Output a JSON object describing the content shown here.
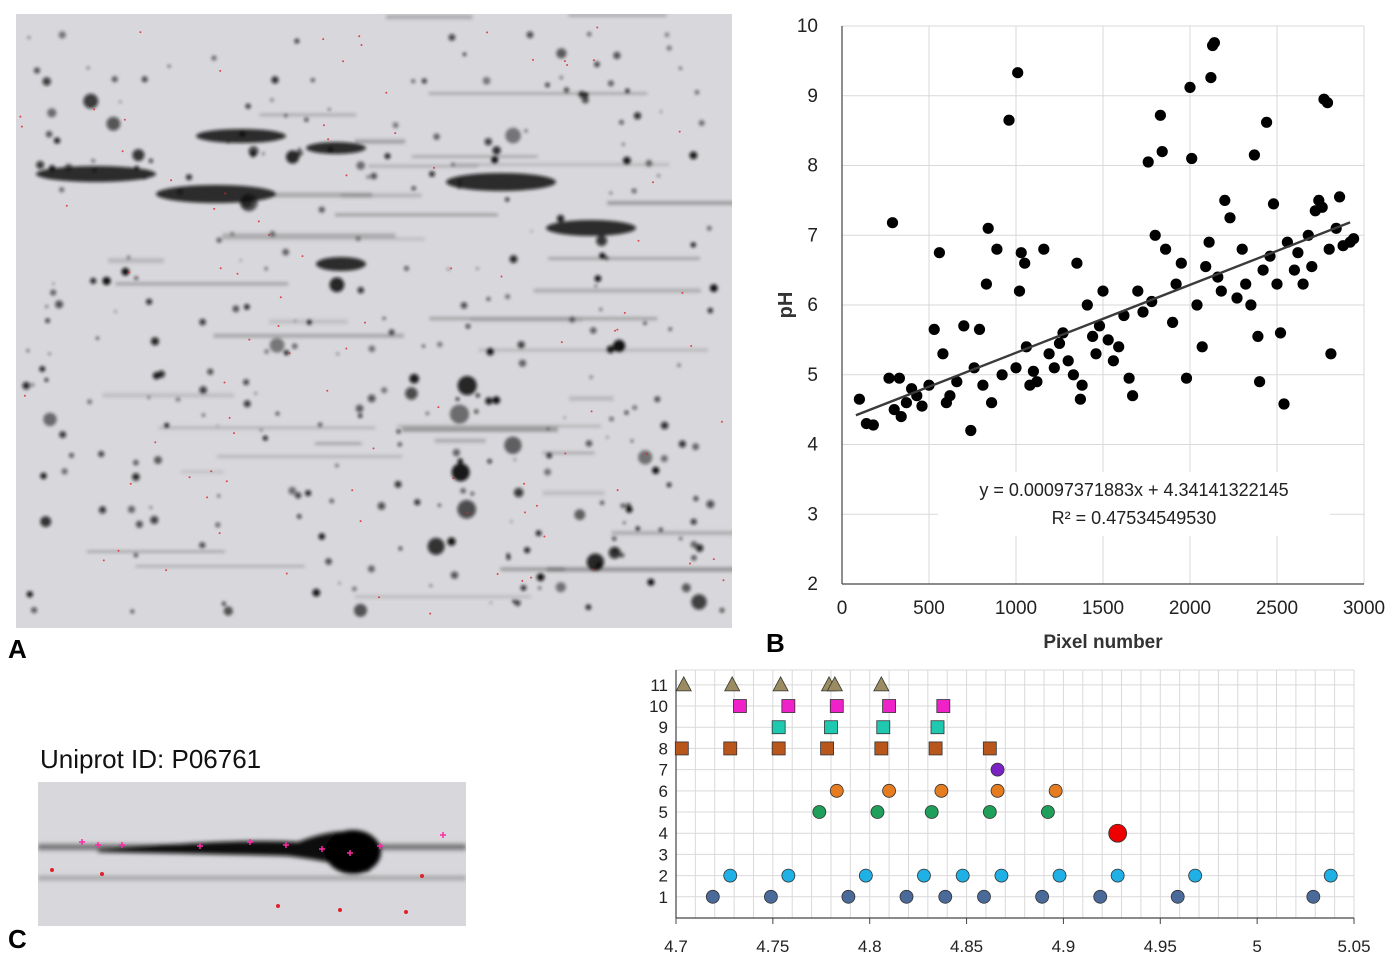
{
  "panel_labels": {
    "a": "A",
    "b": "B",
    "c": "C"
  },
  "gel_c_title": "Uniprot ID: P06761",
  "colors": {
    "gel_background": "#d8d8dc",
    "spot": "#0a0a0a",
    "marker_red": "#e0202a",
    "marker_magenta": "#ff2aa8",
    "regression_line": "#3a3a3a",
    "grid": "#d9d9d9"
  },
  "chart_data": [
    {
      "type": "scatter",
      "title": "",
      "xlabel": "Pixel number",
      "ylabel": "pH",
      "xlim": [
        0,
        3000
      ],
      "ylim": [
        2,
        10
      ],
      "x_ticks": [
        "0",
        "500",
        "1000",
        "1500",
        "2000",
        "2500",
        "3000"
      ],
      "y_ticks": [
        "2",
        "3",
        "4",
        "5",
        "6",
        "7",
        "8",
        "9",
        "10"
      ],
      "grid": true,
      "trendline": {
        "slope": 0.00097371883,
        "intercept": 4.34141322145
      },
      "equation_text": "y = 0.00097371883x + 4.34141322145",
      "r2_text": "R² = 0.47534549530",
      "series": [
        {
          "points": [
            [
              100,
              4.65
            ],
            [
              140,
              4.3
            ],
            [
              180,
              4.28
            ],
            [
              270,
              4.95
            ],
            [
              290,
              7.18
            ],
            [
              300,
              4.5
            ],
            [
              330,
              4.95
            ],
            [
              340,
              4.4
            ],
            [
              370,
              4.6
            ],
            [
              400,
              4.8
            ],
            [
              430,
              4.7
            ],
            [
              460,
              4.55
            ],
            [
              500,
              4.85
            ],
            [
              530,
              5.65
            ],
            [
              560,
              6.75
            ],
            [
              580,
              5.3
            ],
            [
              600,
              4.6
            ],
            [
              620,
              4.7
            ],
            [
              660,
              4.9
            ],
            [
              700,
              5.7
            ],
            [
              740,
              4.2
            ],
            [
              760,
              5.1
            ],
            [
              790,
              5.65
            ],
            [
              810,
              4.85
            ],
            [
              830,
              6.3
            ],
            [
              840,
              7.1
            ],
            [
              860,
              4.6
            ],
            [
              890,
              6.8
            ],
            [
              920,
              5.0
            ],
            [
              960,
              8.65
            ],
            [
              1000,
              5.1
            ],
            [
              1010,
              9.33
            ],
            [
              1020,
              6.2
            ],
            [
              1030,
              6.75
            ],
            [
              1050,
              6.6
            ],
            [
              1060,
              5.4
            ],
            [
              1080,
              4.85
            ],
            [
              1100,
              5.05
            ],
            [
              1120,
              4.9
            ],
            [
              1160,
              6.8
            ],
            [
              1190,
              5.3
            ],
            [
              1220,
              5.1
            ],
            [
              1250,
              5.45
            ],
            [
              1270,
              5.6
            ],
            [
              1300,
              5.2
            ],
            [
              1330,
              5.0
            ],
            [
              1350,
              6.6
            ],
            [
              1370,
              4.65
            ],
            [
              1380,
              4.85
            ],
            [
              1410,
              6.0
            ],
            [
              1440,
              5.55
            ],
            [
              1460,
              5.3
            ],
            [
              1480,
              5.7
            ],
            [
              1500,
              6.2
            ],
            [
              1530,
              5.5
            ],
            [
              1560,
              5.2
            ],
            [
              1590,
              5.4
            ],
            [
              1620,
              5.85
            ],
            [
              1650,
              4.95
            ],
            [
              1670,
              4.7
            ],
            [
              1700,
              6.2
            ],
            [
              1730,
              5.9
            ],
            [
              1760,
              8.05
            ],
            [
              1780,
              6.05
            ],
            [
              1800,
              7.0
            ],
            [
              1830,
              8.72
            ],
            [
              1840,
              8.2
            ],
            [
              1860,
              6.8
            ],
            [
              1900,
              5.75
            ],
            [
              1920,
              6.3
            ],
            [
              1950,
              6.6
            ],
            [
              1980,
              4.95
            ],
            [
              2000,
              9.12
            ],
            [
              2010,
              8.1
            ],
            [
              2040,
              6.0
            ],
            [
              2070,
              5.4
            ],
            [
              2090,
              6.55
            ],
            [
              2110,
              6.9
            ],
            [
              2120,
              9.26
            ],
            [
              2130,
              9.72
            ],
            [
              2140,
              9.76
            ],
            [
              2160,
              6.4
            ],
            [
              2180,
              6.2
            ],
            [
              2200,
              7.5
            ],
            [
              2230,
              7.25
            ],
            [
              2270,
              6.1
            ],
            [
              2300,
              6.8
            ],
            [
              2320,
              6.3
            ],
            [
              2350,
              6.0
            ],
            [
              2370,
              8.15
            ],
            [
              2390,
              5.55
            ],
            [
              2400,
              4.9
            ],
            [
              2420,
              6.5
            ],
            [
              2440,
              8.62
            ],
            [
              2460,
              6.7
            ],
            [
              2480,
              7.45
            ],
            [
              2500,
              6.3
            ],
            [
              2520,
              5.6
            ],
            [
              2540,
              4.58
            ],
            [
              2560,
              6.9
            ],
            [
              2600,
              6.5
            ],
            [
              2620,
              6.75
            ],
            [
              2650,
              6.3
            ],
            [
              2680,
              7.0
            ],
            [
              2700,
              6.55
            ],
            [
              2720,
              7.35
            ],
            [
              2740,
              7.5
            ],
            [
              2760,
              7.4
            ],
            [
              2770,
              8.95
            ],
            [
              2790,
              8.9
            ],
            [
              2800,
              6.8
            ],
            [
              2810,
              5.3
            ],
            [
              2840,
              7.1
            ],
            [
              2860,
              7.55
            ],
            [
              2880,
              6.85
            ],
            [
              2920,
              6.9
            ],
            [
              2940,
              6.95
            ]
          ]
        }
      ]
    },
    {
      "type": "scatter",
      "title": "",
      "xlabel": "",
      "ylabel": "",
      "xlim": [
        4.7,
        5.05
      ],
      "ylim": [
        0,
        11.7
      ],
      "x_ticks": [
        "4.7",
        "4.75",
        "4.8",
        "4.85",
        "4.9",
        "4.95",
        "5",
        "5.05"
      ],
      "y_ticks": [
        "1",
        "2",
        "3",
        "4",
        "5",
        "6",
        "7",
        "8",
        "9",
        "10",
        "11"
      ],
      "grid": true,
      "series": [
        {
          "marker": "circle",
          "color": "#4a6a9a",
          "row": 1,
          "x": [
            4.719,
            4.749,
            4.789,
            4.819,
            4.839,
            4.859,
            4.889,
            4.919,
            4.959,
            5.029
          ]
        },
        {
          "marker": "circle",
          "color": "#1fb0e6",
          "row": 2,
          "x": [
            4.728,
            4.758,
            4.798,
            4.828,
            4.848,
            4.868,
            4.898,
            4.928,
            4.968,
            5.038
          ]
        },
        {
          "marker": "circle-large",
          "color": "#ee0000",
          "row": 4,
          "x": [
            4.928
          ]
        },
        {
          "marker": "circle",
          "color": "#1ea05a",
          "row": 5,
          "x": [
            4.774,
            4.804,
            4.832,
            4.862,
            4.892
          ]
        },
        {
          "marker": "circle",
          "color": "#e57c1f",
          "row": 6,
          "x": [
            4.783,
            4.81,
            4.837,
            4.866,
            4.896
          ]
        },
        {
          "marker": "circle",
          "color": "#7a22c4",
          "row": 7,
          "x": [
            4.866
          ]
        },
        {
          "marker": "square",
          "color": "#b8561c",
          "row": 8,
          "x": [
            4.703,
            4.728,
            4.753,
            4.778,
            4.806,
            4.834,
            4.862
          ]
        },
        {
          "marker": "square",
          "color": "#1fc9b0",
          "row": 9,
          "x": [
            4.753,
            4.78,
            4.807,
            4.835
          ]
        },
        {
          "marker": "square",
          "color": "#ee22c8",
          "row": 10,
          "x": [
            4.733,
            4.758,
            4.783,
            4.81,
            4.838
          ]
        },
        {
          "marker": "triangle",
          "color": "#9a8c60",
          "row": 11,
          "x": [
            4.704,
            4.729,
            4.754,
            4.779,
            4.782,
            4.806
          ]
        }
      ]
    }
  ]
}
